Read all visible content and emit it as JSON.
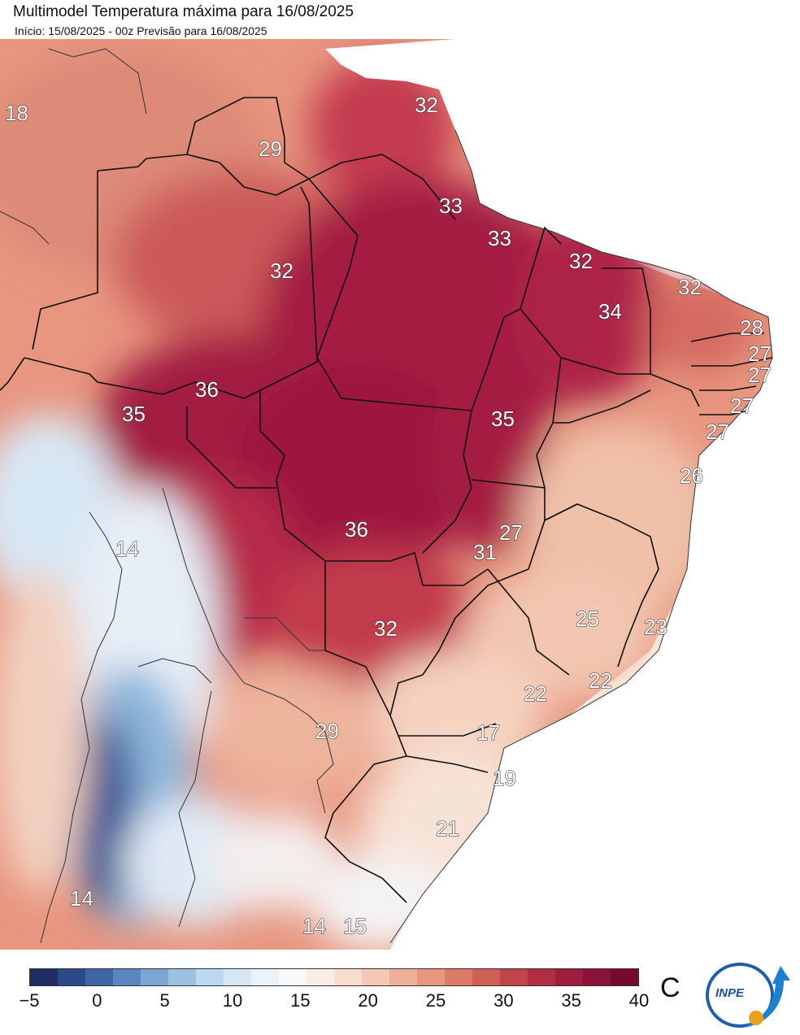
{
  "header": {
    "title": "Multimodel Temperatura máxima para 16/08/2025",
    "subtitle": "Início: 15/08/2025 - 00z  Previsão para 16/08/2025"
  },
  "map": {
    "labels": [
      "18",
      "32",
      "29",
      "33",
      "33",
      "32",
      "32",
      "32",
      "34",
      "28",
      "27",
      "27",
      "27",
      "27",
      "26",
      "35",
      "36",
      "35",
      "36",
      "27",
      "31",
      "25",
      "23",
      "32",
      "22",
      "22",
      "29",
      "17",
      "19",
      "21",
      "14",
      "14",
      "14",
      "15"
    ]
  },
  "legend": {
    "ticks": [
      "−5",
      "0",
      "5",
      "10",
      "15",
      "20",
      "25",
      "30",
      "35",
      "40"
    ],
    "unit": "C",
    "colors": [
      "#1f2f66",
      "#2c4a8a",
      "#3f65a6",
      "#5a86bf",
      "#7ca6d3",
      "#9cc1e2",
      "#bdd7ee",
      "#d6e7f5",
      "#eaf2fa",
      "#f7f9fb",
      "#fbede6",
      "#f8dccf",
      "#f4c8b4",
      "#eeb098",
      "#e6977e",
      "#dc7c67",
      "#cf6055",
      "#c1444a",
      "#b12d43",
      "#9e1c3e",
      "#8a1238",
      "#740a30"
    ],
    "logo_text": "INPE"
  }
}
